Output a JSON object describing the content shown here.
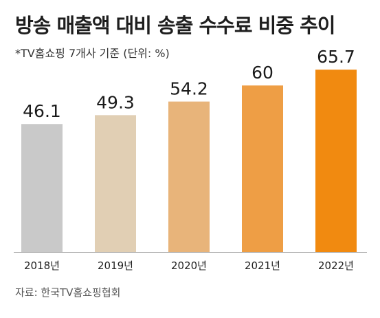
{
  "chart_data": {
    "type": "bar",
    "title": "방송 매출액 대비 송출 수수료 비중 추이",
    "subtitle": "*TV홈쇼핑 7개사 기준 (단위: %)",
    "source": "자료: 한국TV홈쇼핑협회",
    "categories": [
      "2018년",
      "2019년",
      "2020년",
      "2021년",
      "2022년"
    ],
    "values": [
      46.1,
      49.3,
      54.2,
      60,
      65.7
    ],
    "value_labels": [
      "46.1",
      "49.3",
      "54.2",
      "60",
      "65.7"
    ],
    "unit": "%",
    "xlabel": "",
    "ylabel": "",
    "grid": false,
    "legend": "none",
    "bar_colors": [
      "#c9c9c9",
      "#e1cfb4",
      "#e8b47a",
      "#ee9e45",
      "#f18a10"
    ],
    "axis_color": "#9a9a9a"
  }
}
